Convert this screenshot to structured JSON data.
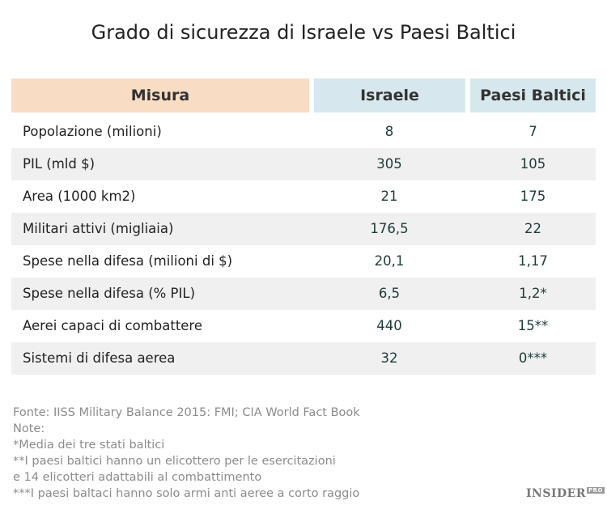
{
  "title": "Grado di sicurezza di Israele vs Paesi Baltici",
  "table": {
    "header": [
      "Misura",
      "Israele",
      "Paesi Baltici"
    ],
    "rows": [
      [
        "Popolazione (milioni)",
        "8",
        "7"
      ],
      [
        "PIL (mld $)",
        "305",
        "105"
      ],
      [
        "Area (1000 km2)",
        "21",
        "175"
      ],
      [
        "Militari attivi (migliaia)",
        "176,5",
        "22"
      ],
      [
        "Spese nella difesa (milioni di $)",
        "20,1",
        "1,17"
      ],
      [
        "Spese nella difesa (% PIL)",
        "6,5",
        "1,2*"
      ],
      [
        "Aerei capaci di combattere",
        "440",
        "15**"
      ],
      [
        "Sistemi di difesa aerea",
        "32",
        "0***"
      ]
    ]
  },
  "notes": [
    "Fonte: IISS Military Balance 2015: FMI; CIA World Fact Book",
    "Note:",
    "*Media dei tre stati baltici",
    "**I paesi baltici hanno un elicottero per le esercitazioni",
    "e 14 elicotteri adattabili al combattimento",
    "***I paesi baltaci hanno solo armi anti aeree a corto raggio"
  ],
  "logo": {
    "name": "INSIDER",
    "tag": "PRO"
  }
}
